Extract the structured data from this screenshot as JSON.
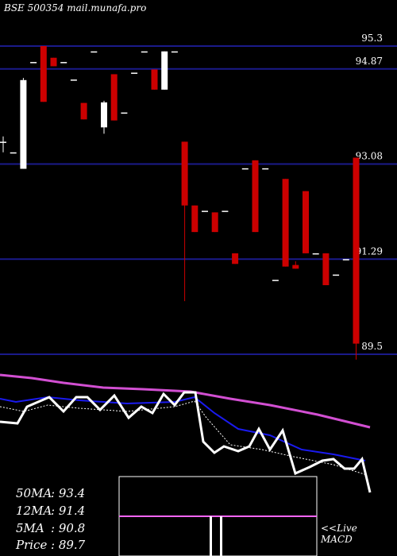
{
  "header": {
    "exchange_code": "BSE 500354",
    "site": "mail.munafa.pro"
  },
  "chart_data": {
    "type": "candlestick",
    "price_levels": [
      "95.3",
      "94.87",
      "93.08",
      "91.29",
      "89.5"
    ],
    "price_range": [
      89.5,
      95.6
    ],
    "candles": [
      {
        "o": 93.5,
        "c": 93.5,
        "h": 93.6,
        "l": 93.3
      },
      {
        "o": 93.3,
        "c": 93.3,
        "h": 93.3,
        "l": 93.3
      },
      {
        "o": 92.99,
        "c": 94.66,
        "h": 94.7,
        "l": 92.99
      },
      {
        "o": 95.0,
        "c": 95.0,
        "h": 95.0,
        "l": 95.0
      },
      {
        "o": 95.3,
        "c": 94.25,
        "h": 95.3,
        "l": 94.25
      },
      {
        "o": 95.08,
        "c": 94.92,
        "h": 95.08,
        "l": 94.92
      },
      {
        "o": 95.0,
        "c": 95.0,
        "h": 95.0,
        "l": 95.0
      },
      {
        "o": 94.67,
        "c": 94.67,
        "h": 94.67,
        "l": 94.67
      },
      {
        "o": 94.23,
        "c": 93.92,
        "h": 94.23,
        "l": 93.92
      },
      {
        "o": 95.2,
        "c": 95.2,
        "h": 95.2,
        "l": 95.2
      },
      {
        "o": 93.77,
        "c": 94.24,
        "h": 94.27,
        "l": 93.65
      },
      {
        "o": 94.77,
        "c": 93.9,
        "h": 94.77,
        "l": 93.9
      },
      {
        "o": 94.05,
        "c": 94.05,
        "h": 94.05,
        "l": 94.05
      },
      {
        "o": 94.8,
        "c": 94.8,
        "h": 94.8,
        "l": 94.8
      },
      {
        "o": 95.2,
        "c": 95.2,
        "h": 95.2,
        "l": 95.2
      },
      {
        "o": 94.86,
        "c": 94.48,
        "h": 94.86,
        "l": 94.48
      },
      {
        "o": 94.48,
        "c": 95.2,
        "h": 95.2,
        "l": 94.48
      },
      {
        "o": 95.2,
        "c": 95.2,
        "h": 95.2,
        "l": 95.2
      },
      {
        "o": 93.5,
        "c": 92.3,
        "h": 93.5,
        "l": 90.5
      },
      {
        "o": 92.3,
        "c": 91.8,
        "h": 92.3,
        "l": 91.8
      },
      {
        "o": 92.2,
        "c": 92.2,
        "h": 92.2,
        "l": 92.2
      },
      {
        "o": 92.17,
        "c": 91.8,
        "h": 92.17,
        "l": 91.8
      },
      {
        "o": 92.2,
        "c": 92.2,
        "h": 92.2,
        "l": 92.2
      },
      {
        "o": 91.4,
        "c": 91.2,
        "h": 91.4,
        "l": 91.2
      },
      {
        "o": 93.0,
        "c": 93.0,
        "h": 93.0,
        "l": 93.0
      },
      {
        "o": 93.15,
        "c": 91.8,
        "h": 93.15,
        "l": 91.8
      },
      {
        "o": 93.0,
        "c": 93.0,
        "h": 93.0,
        "l": 93.0
      },
      {
        "o": 90.9,
        "c": 90.9,
        "h": 90.9,
        "l": 90.9
      },
      {
        "o": 92.8,
        "c": 91.15,
        "h": 92.8,
        "l": 91.15
      },
      {
        "o": 91.18,
        "c": 91.11,
        "h": 91.25,
        "l": 91.11
      },
      {
        "o": 92.57,
        "c": 91.4,
        "h": 92.57,
        "l": 91.4
      },
      {
        "o": 91.4,
        "c": 91.4,
        "h": 91.4,
        "l": 91.4
      },
      {
        "o": 91.4,
        "c": 90.8,
        "h": 91.4,
        "l": 90.8
      },
      {
        "o": 91.0,
        "c": 91.0,
        "h": 91.0,
        "l": 91.0
      },
      {
        "o": 91.29,
        "c": 91.29,
        "h": 91.29,
        "l": 91.29
      },
      {
        "o": 93.2,
        "c": 89.7,
        "h": 93.2,
        "l": 89.4
      }
    ],
    "ma_values": [
      {
        "label": "50MA",
        "value": "93.4"
      },
      {
        "label": "12MA",
        "value": "91.4"
      },
      {
        "label": "5MA",
        "value": "90.8"
      },
      {
        "label": "Price",
        "value": "89.7"
      }
    ],
    "macd_label": [
      "<<Live",
      "MACD"
    ],
    "colors": {
      "background": "#000000",
      "level_line": "#1a1a8a",
      "up": "#ffffff",
      "down": "#cc0000",
      "ma50": "#d24fd2",
      "ma12": "#1a1aee",
      "ma5": "#ffffff",
      "price": "#ffffff",
      "macd_line": "#ff66ff"
    }
  }
}
